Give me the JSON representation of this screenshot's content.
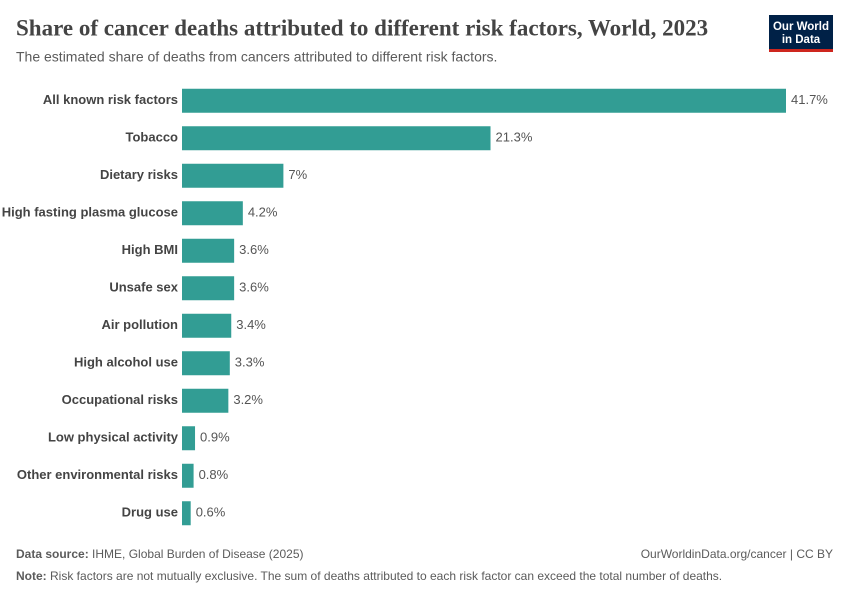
{
  "chart_data": {
    "type": "bar",
    "orientation": "horizontal",
    "title": "Share of cancer deaths attributed to different risk factors, World, 2023",
    "subtitle": "The estimated share of deaths from cancers attributed to different risk factors.",
    "categories": [
      "All known risk factors",
      "Tobacco",
      "Dietary risks",
      "High fasting plasma glucose",
      "High BMI",
      "Unsafe sex",
      "Air pollution",
      "High alcohol use",
      "Occupational risks",
      "Low physical activity",
      "Other environmental risks",
      "Drug use"
    ],
    "values": [
      41.7,
      21.3,
      7,
      4.2,
      3.6,
      3.6,
      3.4,
      3.3,
      3.2,
      0.9,
      0.8,
      0.6
    ],
    "value_labels": [
      "41.7%",
      "21.3%",
      "7%",
      "4.2%",
      "3.6%",
      "3.6%",
      "3.4%",
      "3.3%",
      "3.2%",
      "0.9%",
      "0.8%",
      "0.6%"
    ],
    "color": "#329d94"
  },
  "logo": [
    "Our World",
    "in Data"
  ],
  "footer": {
    "source_label": "Data source:",
    "source": "IHME, Global Burden of Disease (2025)",
    "link": "OurWorldinData.org/cancer | CC BY",
    "note_label": "Note:",
    "note": "Risk factors are not mutually exclusive. The sum of deaths attributed to each risk factor can exceed the total number of deaths."
  }
}
